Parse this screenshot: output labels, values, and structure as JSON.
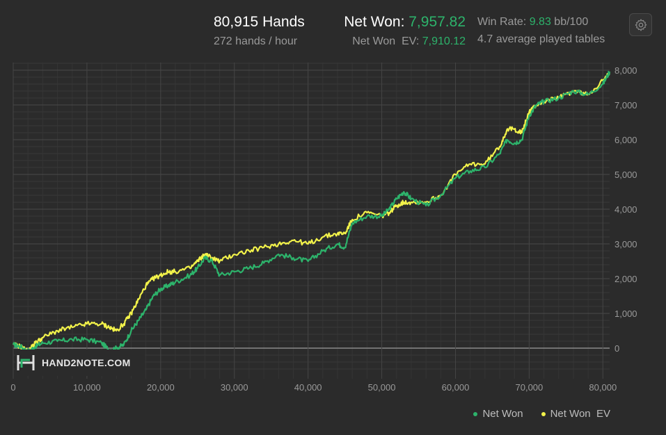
{
  "header": {
    "hands_total": "80,915 Hands",
    "hands_per_hour": "272 hands / hour",
    "net_won_label": "Net Won:",
    "net_won_value": "7,957.82",
    "net_won_ev_label": "Net Won  EV:",
    "net_won_ev_value": "7,910.12",
    "win_rate_label": "Win Rate:",
    "win_rate_value": "9.83",
    "win_rate_unit": "bb/100",
    "tables_text": "4.7 average played tables"
  },
  "settings": {
    "icon": "gear-icon"
  },
  "logo": {
    "text": "HAND2NOTE.COM"
  },
  "colors": {
    "net_won": "#2db36b",
    "net_won_ev": "#f2f24a",
    "accent": "#2db36b"
  },
  "chart_data": {
    "type": "line",
    "x_ticks": [
      "0",
      "10,000",
      "20,000",
      "30,000",
      "40,000",
      "50,000",
      "60,000",
      "70,000",
      "80,000"
    ],
    "y_ticks": [
      "0",
      "1,000",
      "2,000",
      "3,000",
      "4,000",
      "5,000",
      "6,000",
      "7,000",
      "8,000"
    ],
    "xlim": [
      0,
      80915
    ],
    "ylim": [
      -700,
      8200
    ],
    "grid": true,
    "legend_position": "bottom-right",
    "series": [
      {
        "name": "Net Won",
        "color": "#2db36b",
        "x": [
          0,
          1000,
          2000,
          3000,
          4000,
          6000,
          8000,
          10000,
          12000,
          13000,
          14000,
          15000,
          16000,
          17000,
          18000,
          19000,
          20000,
          21000,
          22000,
          24000,
          25000,
          26000,
          27000,
          28000,
          30000,
          32000,
          34000,
          36000,
          38000,
          40000,
          42000,
          44000,
          45000,
          46000,
          48000,
          50000,
          51000,
          52000,
          53000,
          54000,
          56000,
          58000,
          60000,
          62000,
          64000,
          66000,
          67000,
          68000,
          69000,
          70000,
          71000,
          72000,
          74000,
          76000,
          78000,
          80000,
          80915
        ],
        "y": [
          100,
          50,
          -100,
          50,
          150,
          200,
          250,
          250,
          150,
          -50,
          0,
          100,
          500,
          800,
          1100,
          1500,
          1700,
          1800,
          1900,
          2100,
          2300,
          2600,
          2500,
          2100,
          2200,
          2300,
          2450,
          2700,
          2600,
          2500,
          2800,
          3000,
          2900,
          3600,
          3800,
          3800,
          4000,
          4300,
          4500,
          4300,
          4100,
          4400,
          4900,
          5100,
          5200,
          5600,
          6000,
          5900,
          6000,
          6700,
          7000,
          7100,
          7200,
          7400,
          7300,
          7600,
          7958
        ]
      },
      {
        "name": "Net Won  EV",
        "color": "#f2f24a",
        "x": [
          0,
          1000,
          2000,
          3000,
          4000,
          6000,
          8000,
          10000,
          12000,
          13000,
          14000,
          15000,
          16000,
          17000,
          18000,
          19000,
          20000,
          21000,
          22000,
          24000,
          25000,
          26000,
          27000,
          28000,
          30000,
          32000,
          34000,
          36000,
          38000,
          40000,
          42000,
          44000,
          45000,
          46000,
          48000,
          50000,
          51000,
          52000,
          53000,
          54000,
          56000,
          58000,
          60000,
          62000,
          64000,
          66000,
          67000,
          68000,
          69000,
          70000,
          71000,
          72000,
          74000,
          76000,
          78000,
          80000,
          80915
        ],
        "y": [
          100,
          50,
          -100,
          150,
          300,
          500,
          600,
          700,
          700,
          600,
          500,
          700,
          1000,
          1400,
          1800,
          2000,
          2100,
          2200,
          2200,
          2300,
          2500,
          2700,
          2600,
          2500,
          2700,
          2800,
          2900,
          3000,
          3100,
          3000,
          3200,
          3300,
          3300,
          3700,
          3900,
          3800,
          3900,
          4100,
          4200,
          4200,
          4200,
          4400,
          5000,
          5300,
          5300,
          5800,
          6300,
          6300,
          6200,
          6800,
          7000,
          7100,
          7200,
          7400,
          7300,
          7700,
          7910
        ]
      }
    ]
  }
}
